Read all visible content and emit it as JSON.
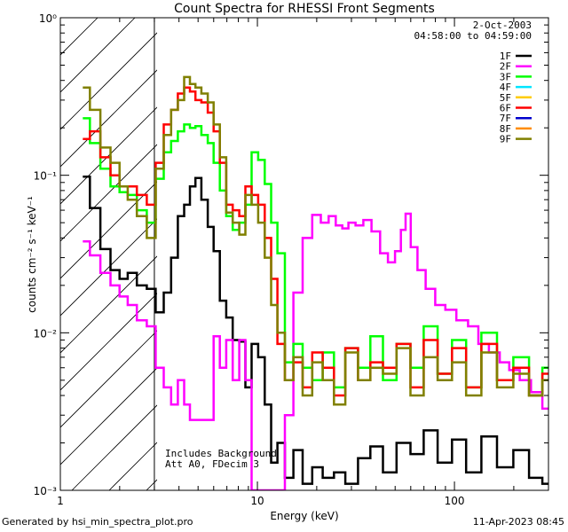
{
  "chart_data": {
    "type": "line",
    "title": "Count Spectra for RHESSI Front Segments",
    "xlabel": "Energy (keV)",
    "ylabel": "counts cm⁻² s⁻¹ keV⁻¹",
    "xscale": "log",
    "yscale": "log",
    "xlim": [
      1,
      300
    ],
    "ylim": [
      0.001,
      1
    ],
    "x_tick_labels": [
      {
        "value": 1,
        "label": "1"
      },
      {
        "value": 10,
        "label": "10"
      },
      {
        "value": 100,
        "label": "100"
      }
    ],
    "y_tick_labels": [
      {
        "value": 1,
        "label": "10⁰"
      },
      {
        "value": 0.1,
        "label": "10⁻¹"
      },
      {
        "value": 0.01,
        "label": "10⁻²"
      },
      {
        "value": 0.001,
        "label": "10⁻³"
      }
    ],
    "hatched_region": {
      "x": [
        1,
        3
      ]
    },
    "date": "2-Oct-2003",
    "time_range": "04:58:00 to 04:59:00",
    "annotations": [
      "Includes Background",
      "Att A0, FDecim 3"
    ],
    "legend_position": "top-right",
    "legend": [
      {
        "name": "1F",
        "color": "#000000"
      },
      {
        "name": "2F",
        "color": "#ff00ff"
      },
      {
        "name": "3F",
        "color": "#00ff00"
      },
      {
        "name": "4F",
        "color": "#00e5ff"
      },
      {
        "name": "5F",
        "color": "#ffcc00"
      },
      {
        "name": "6F",
        "color": "#ff0000"
      },
      {
        "name": "7F",
        "color": "#0000cc"
      },
      {
        "name": "8F",
        "color": "#ff8c00"
      },
      {
        "name": "9F",
        "color": "#808000"
      }
    ],
    "series": [
      {
        "name": "1F",
        "color": "#000000",
        "x": [
          1.33,
          1.5,
          1.7,
          1.9,
          2.1,
          2.3,
          2.6,
          2.9,
          3.2,
          3.5,
          3.8,
          4.1,
          4.4,
          4.7,
          5.0,
          5.4,
          5.8,
          6.2,
          6.7,
          7.2,
          7.8,
          8.4,
          9.0,
          9.7,
          10.5,
          11.3,
          12.2,
          13.1,
          14.5,
          16,
          18,
          20,
          23,
          26,
          30,
          35,
          40,
          47,
          55,
          65,
          75,
          90,
          105,
          125,
          150,
          180,
          220,
          260,
          300
        ],
        "y": [
          0.098,
          0.062,
          0.034,
          0.025,
          0.022,
          0.024,
          0.02,
          0.019,
          0.0135,
          0.018,
          0.03,
          0.055,
          0.065,
          0.085,
          0.096,
          0.07,
          0.047,
          0.033,
          0.016,
          0.0125,
          0.009,
          0.0088,
          0.0045,
          0.0085,
          0.007,
          0.0035,
          0.0015,
          0.002,
          0.0012,
          0.0018,
          0.0011,
          0.0014,
          0.0012,
          0.0013,
          0.0011,
          0.0016,
          0.0019,
          0.0013,
          0.002,
          0.0017,
          0.0024,
          0.0015,
          0.0021,
          0.0013,
          0.0022,
          0.0014,
          0.0018,
          0.0012,
          0.0011
        ]
      },
      {
        "name": "2F",
        "color": "#ff00ff",
        "x": [
          1.33,
          1.5,
          1.7,
          1.9,
          2.1,
          2.3,
          2.6,
          2.9,
          3.2,
          3.5,
          3.8,
          4.1,
          4.4,
          4.7,
          5.0,
          5.4,
          5.8,
          6.2,
          6.7,
          7.2,
          7.8,
          8.4,
          9.0,
          9.7,
          10.5,
          11.3,
          12.2,
          13.1,
          14.5,
          16,
          18,
          20,
          22,
          24,
          26,
          28,
          30,
          33,
          36,
          40,
          44,
          48,
          52,
          55,
          58,
          62,
          68,
          75,
          85,
          95,
          110,
          125,
          140,
          160,
          180,
          200,
          230,
          260,
          300
        ],
        "y": [
          0.038,
          0.031,
          0.024,
          0.02,
          0.017,
          0.015,
          0.012,
          0.011,
          0.006,
          0.0045,
          0.0035,
          0.005,
          0.0035,
          0.0028,
          0.0028,
          0.0028,
          0.0028,
          0.0095,
          0.006,
          0.009,
          0.005,
          0.009,
          0.005,
          0.001,
          0.001,
          0.001,
          0.001,
          0.001,
          0.003,
          0.018,
          0.04,
          0.056,
          0.05,
          0.055,
          0.048,
          0.046,
          0.05,
          0.048,
          0.052,
          0.044,
          0.032,
          0.028,
          0.033,
          0.045,
          0.057,
          0.035,
          0.025,
          0.019,
          0.015,
          0.014,
          0.012,
          0.011,
          0.0085,
          0.0075,
          0.0065,
          0.0058,
          0.005,
          0.0042,
          0.0033
        ]
      },
      {
        "name": "3F",
        "color": "#00ff00",
        "x": [
          1.33,
          1.5,
          1.7,
          1.9,
          2.1,
          2.3,
          2.6,
          2.9,
          3.2,
          3.5,
          3.8,
          4.1,
          4.4,
          4.7,
          5.0,
          5.4,
          5.8,
          6.2,
          6.7,
          7.2,
          7.8,
          8.4,
          9.0,
          9.7,
          10.5,
          11.3,
          12.2,
          13.1,
          14.5,
          16,
          18,
          20,
          23,
          26,
          30,
          35,
          40,
          47,
          55,
          65,
          75,
          90,
          105,
          125,
          150,
          180,
          220,
          260,
          300
        ],
        "y": [
          0.23,
          0.16,
          0.11,
          0.085,
          0.078,
          0.075,
          0.06,
          0.05,
          0.095,
          0.14,
          0.165,
          0.19,
          0.21,
          0.2,
          0.205,
          0.18,
          0.16,
          0.12,
          0.08,
          0.055,
          0.045,
          0.05,
          0.065,
          0.14,
          0.125,
          0.088,
          0.05,
          0.032,
          0.0065,
          0.0085,
          0.006,
          0.005,
          0.0075,
          0.0045,
          0.008,
          0.006,
          0.0095,
          0.005,
          0.0085,
          0.006,
          0.011,
          0.0055,
          0.009,
          0.0045,
          0.01,
          0.005,
          0.007,
          0.004,
          0.006
        ]
      },
      {
        "name": "6F",
        "color": "#ff0000",
        "x": [
          1.33,
          1.5,
          1.7,
          1.9,
          2.1,
          2.3,
          2.6,
          2.9,
          3.2,
          3.5,
          3.8,
          4.1,
          4.4,
          4.7,
          5.0,
          5.4,
          5.8,
          6.2,
          6.7,
          7.2,
          7.8,
          8.4,
          9.0,
          9.7,
          10.5,
          11.3,
          12.2,
          13.1,
          14.5,
          16,
          18,
          20,
          23,
          26,
          30,
          35,
          40,
          47,
          55,
          65,
          75,
          90,
          105,
          125,
          150,
          180,
          220,
          260,
          300
        ],
        "y": [
          0.17,
          0.19,
          0.13,
          0.1,
          0.085,
          0.085,
          0.075,
          0.065,
          0.12,
          0.21,
          0.26,
          0.33,
          0.36,
          0.34,
          0.3,
          0.29,
          0.25,
          0.19,
          0.12,
          0.065,
          0.06,
          0.055,
          0.085,
          0.075,
          0.065,
          0.04,
          0.022,
          0.0085,
          0.005,
          0.0065,
          0.0045,
          0.0075,
          0.006,
          0.004,
          0.008,
          0.005,
          0.0065,
          0.006,
          0.0085,
          0.0045,
          0.009,
          0.0055,
          0.008,
          0.0045,
          0.0085,
          0.005,
          0.006,
          0.004,
          0.0055
        ]
      },
      {
        "name": "9F",
        "color": "#808000",
        "x": [
          1.33,
          1.5,
          1.7,
          1.9,
          2.1,
          2.3,
          2.6,
          2.9,
          3.2,
          3.5,
          3.8,
          4.1,
          4.4,
          4.7,
          5.0,
          5.4,
          5.8,
          6.2,
          6.7,
          7.2,
          7.8,
          8.4,
          9.0,
          9.7,
          10.5,
          11.3,
          12.2,
          13.1,
          14.5,
          16,
          18,
          20,
          23,
          26,
          30,
          35,
          40,
          47,
          55,
          65,
          75,
          90,
          105,
          125,
          150,
          180,
          220,
          260,
          300
        ],
        "y": [
          0.36,
          0.26,
          0.15,
          0.12,
          0.085,
          0.07,
          0.055,
          0.04,
          0.11,
          0.18,
          0.26,
          0.3,
          0.42,
          0.38,
          0.36,
          0.33,
          0.29,
          0.21,
          0.13,
          0.058,
          0.05,
          0.042,
          0.075,
          0.065,
          0.05,
          0.03,
          0.015,
          0.01,
          0.005,
          0.007,
          0.004,
          0.0065,
          0.005,
          0.0035,
          0.0075,
          0.005,
          0.006,
          0.0055,
          0.008,
          0.004,
          0.007,
          0.005,
          0.0065,
          0.004,
          0.0075,
          0.0045,
          0.0055,
          0.004,
          0.005
        ]
      }
    ]
  },
  "footer": {
    "left": "Generated by hsi_min_spectra_plot.pro",
    "right": "11-Apr-2023 08:45"
  }
}
